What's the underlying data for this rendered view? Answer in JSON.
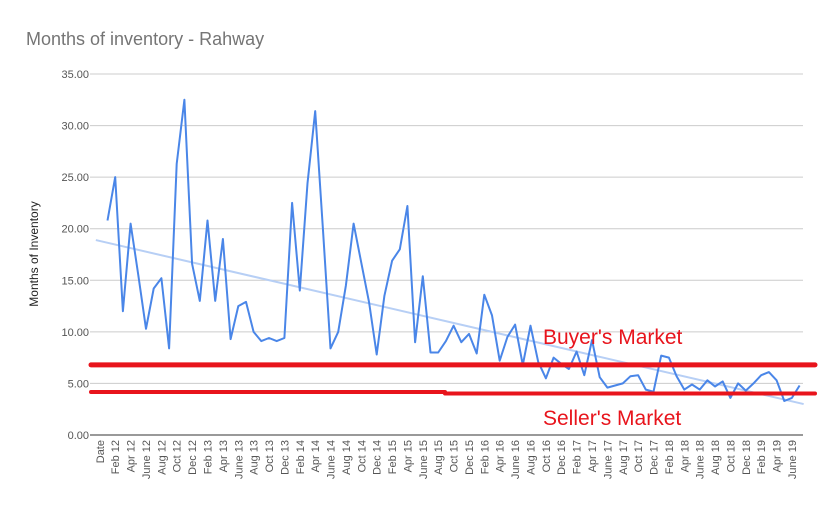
{
  "chart_data": {
    "type": "line",
    "title": "Months of inventory - Rahway",
    "xlabel": "",
    "ylabel": "Months of Inventory",
    "ylim": [
      0,
      35
    ],
    "y_ticks": [
      "0.00",
      "5.00",
      "10.00",
      "15.00",
      "20.00",
      "25.00",
      "30.00",
      "35.00"
    ],
    "grid": true,
    "x_tick_labels": [
      "Date",
      "Feb 12",
      "Apr 12",
      "June 12",
      "Aug 12",
      "Oct 12",
      "Dec 12",
      "Feb 13",
      "Apr 13",
      "June 13",
      "Aug 13",
      "Oct 13",
      "Dec 13",
      "Feb 14",
      "Apr 14",
      "June 14",
      "Aug 14",
      "Oct 14",
      "Dec 14",
      "Feb 15",
      "Apr 15",
      "June 15",
      "Aug 15",
      "Oct 15",
      "Dec 15",
      "Feb 16",
      "Apr 16",
      "June 16",
      "Aug 16",
      "Oct 16",
      "Dec 16",
      "Feb 17",
      "Apr 17",
      "June 17",
      "Aug 17",
      "Oct 17",
      "Dec 17",
      "Feb 18",
      "Apr 18",
      "June 18",
      "Aug 18",
      "Oct 18",
      "Dec 18",
      "Feb 19",
      "Apr 19",
      "June 19"
    ],
    "series": [
      {
        "color": "#4a86e8",
        "x": [
          "Jan 12",
          "Feb 12",
          "Mar 12",
          "Apr 12",
          "May 12",
          "June 12",
          "Jul 12",
          "Aug 12",
          "Sep 12",
          "Oct 12",
          "Nov 12",
          "Dec 12",
          "Jan 13",
          "Feb 13",
          "Mar 13",
          "Apr 13",
          "May 13",
          "June 13",
          "Jul 13",
          "Aug 13",
          "Sep 13",
          "Oct 13",
          "Nov 13",
          "Dec 13",
          "Jan 14",
          "Feb 14",
          "Mar 14",
          "Apr 14",
          "May 14",
          "June 14",
          "Jul 14",
          "Aug 14",
          "Sep 14",
          "Oct 14",
          "Nov 14",
          "Dec 14",
          "Jan 15",
          "Feb 15",
          "Mar 15",
          "Apr 15",
          "May 15",
          "June 15",
          "Jul 15",
          "Aug 15",
          "Sep 15",
          "Oct 15",
          "Nov 15",
          "Dec 15",
          "Jan 16",
          "Feb 16",
          "Mar 16",
          "Apr 16",
          "May 16",
          "June 16",
          "Jul 16",
          "Aug 16",
          "Sep 16",
          "Oct 16",
          "Nov 16",
          "Dec 16",
          "Jan 17",
          "Feb 17",
          "Mar 17",
          "Apr 17",
          "May 17",
          "June 17",
          "Jul 17",
          "Aug 17",
          "Sep 17",
          "Oct 17",
          "Nov 17",
          "Dec 17",
          "Jan 18",
          "Feb 18",
          "Mar 18",
          "Apr 18",
          "May 18",
          "June 18",
          "Jul 18",
          "Aug 18",
          "Sep 18",
          "Oct 18",
          "Nov 18",
          "Dec 18",
          "Jan 19",
          "Feb 19",
          "Mar 19",
          "Apr 19",
          "May 19",
          "June 19",
          "Jul 19"
        ],
        "values": [
          20.8,
          25.0,
          12.0,
          20.5,
          15.5,
          10.3,
          14.2,
          15.2,
          8.4,
          26.3,
          32.5,
          16.6,
          13.0,
          20.8,
          13.0,
          19.0,
          9.3,
          12.5,
          12.9,
          10.0,
          9.1,
          9.4,
          9.1,
          9.4,
          22.5,
          14.0,
          24.4,
          31.4,
          20.0,
          8.4,
          10.0,
          14.5,
          20.5,
          16.7,
          12.9,
          7.8,
          13.5,
          16.9,
          18.0,
          22.2,
          9.0,
          15.4,
          8.0,
          8.0,
          9.1,
          10.6,
          9.0,
          9.8,
          7.9,
          13.6,
          11.6,
          7.2,
          9.5,
          10.7,
          6.8,
          10.6,
          7.1,
          5.5,
          7.5,
          6.9,
          6.4,
          8.1,
          5.8,
          9.2,
          5.6,
          4.6,
          4.8,
          5.0,
          5.7,
          5.8,
          4.4,
          4.2,
          7.7,
          7.5,
          5.7,
          4.4,
          4.9,
          4.4,
          5.3,
          4.7,
          5.2,
          3.6,
          5.0,
          4.3,
          5.0,
          5.8,
          6.1,
          5.3,
          3.3,
          3.6,
          4.8
        ]
      }
    ],
    "trendline": {
      "color": "#b7cff5",
      "start_value": 18.9,
      "end_value": 3.0
    },
    "annotations": [
      {
        "text": "Buyer's Market",
        "line_value": 6.8,
        "color": "#e8141c"
      },
      {
        "text": "Seller's Market",
        "line_value": 4.1,
        "color": "#e8141c"
      }
    ]
  }
}
